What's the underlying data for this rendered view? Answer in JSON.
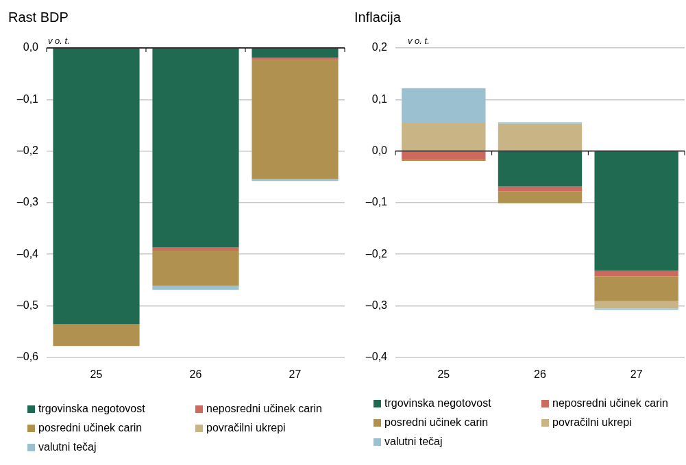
{
  "chart_data": [
    {
      "type": "bar",
      "title": "Rast BDP",
      "ylabel": "v o. t.",
      "categories": [
        "25",
        "26",
        "27"
      ],
      "stacked": true,
      "grid": "y",
      "legend": "bottom",
      "ylim": [
        -0.6,
        0
      ],
      "yticks": [
        {
          "value": -0.6,
          "label": "–0,6"
        },
        {
          "value": -0.5,
          "label": "–0,5"
        },
        {
          "value": -0.4,
          "label": "–0,4"
        },
        {
          "value": -0.3,
          "label": "–0,3"
        },
        {
          "value": -0.2,
          "label": "–0,2"
        },
        {
          "value": -0.1,
          "label": "–0,1"
        },
        {
          "value": 0,
          "label": "0,0"
        }
      ],
      "series": [
        {
          "name": "trgovinska negotovost",
          "color": "#206a52",
          "values": [
            -0.536,
            -0.387,
            -0.019
          ]
        },
        {
          "name": "neposredni učinek carin",
          "color": "#cc6a5d",
          "values": [
            0,
            -0.006,
            -0.004
          ]
        },
        {
          "name": "posredni učinek carin",
          "color": "#b0914f",
          "values": [
            -0.042,
            -0.068,
            -0.231
          ]
        },
        {
          "name": "povračilni ukrepi",
          "color": "#c8b484",
          "values": [
            0,
            0,
            0
          ]
        },
        {
          "name": "valutni tečaj",
          "color": "#9bc0cf",
          "values": [
            0,
            -0.008,
            -0.004
          ]
        }
      ]
    },
    {
      "type": "bar",
      "title": "Inflacija",
      "ylabel": "v o. t.",
      "categories": [
        "25",
        "26",
        "27"
      ],
      "stacked": true,
      "grid": "y",
      "legend": "bottom",
      "ylim": [
        -0.4,
        0.2
      ],
      "yticks": [
        {
          "value": -0.4,
          "label": "–0,4"
        },
        {
          "value": -0.3,
          "label": "–0,3"
        },
        {
          "value": -0.2,
          "label": "–0,2"
        },
        {
          "value": -0.1,
          "label": "–0,1"
        },
        {
          "value": 0,
          "label": "0,0"
        },
        {
          "value": 0.1,
          "label": "0,1"
        },
        {
          "value": 0.2,
          "label": "0,2"
        }
      ],
      "series": [
        {
          "name": "trgovinska negotovost",
          "color": "#206a52",
          "values": [
            0,
            -0.069,
            -0.232
          ]
        },
        {
          "name": "neposredni učinek carin",
          "color": "#cc6a5d",
          "values": [
            -0.017,
            -0.009,
            -0.011
          ]
        },
        {
          "name": "posredni učinek carin",
          "color": "#b0914f",
          "values": [
            -0.002,
            -0.023,
            -0.048
          ]
        },
        {
          "name": "povračilni ukrepi",
          "color": "#c8b484",
          "values": [
            0.054,
            0.053,
            -0.014
          ]
        },
        {
          "name": "valutni tečaj",
          "color": "#9bc0cf",
          "values": [
            0.068,
            0.003,
            -0.003
          ]
        }
      ]
    }
  ]
}
